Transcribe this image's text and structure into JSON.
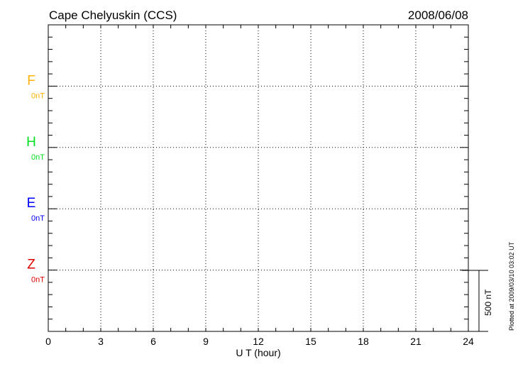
{
  "chart_data": {
    "type": "line",
    "title": "Cape Chelyuskin (CCS)",
    "date": "2008/06/08",
    "xlabel": "U T (hour)",
    "xlim": [
      0,
      24
    ],
    "xticks": [
      "0",
      "3",
      "6",
      "9",
      "12",
      "15",
      "18",
      "21",
      "24"
    ],
    "grid": true,
    "series": [
      {
        "name": "F",
        "offset_label": "0nT",
        "color": "#ffb000",
        "values": []
      },
      {
        "name": "H",
        "offset_label": "0nT",
        "color": "#00e020",
        "values": []
      },
      {
        "name": "E",
        "offset_label": "0nT",
        "color": "#0000ff",
        "values": []
      },
      {
        "name": "Z",
        "offset_label": "0nT",
        "color": "#e00000",
        "values": []
      }
    ],
    "scale_bar": "500 nT",
    "footnote": "Plotted at 2009/03/10 03:02 UT"
  }
}
